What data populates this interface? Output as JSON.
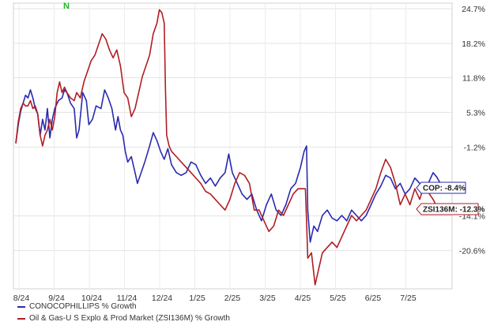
{
  "brand_mark": "N",
  "chart_data": {
    "type": "line",
    "x_ticks": [
      "8/24",
      "9/24",
      "10/24",
      "11/24",
      "12/24",
      "1/25",
      "2/25",
      "3/25",
      "4/25",
      "5/25",
      "6/25",
      "7/25"
    ],
    "y_ticks": [
      "24.7%",
      "18.2%",
      "11.8%",
      "5.3%",
      "-1.2%",
      "-14.1%",
      "-20.6%"
    ],
    "ylim": [
      -27,
      25
    ],
    "grid": true,
    "legend_position": "bottom-left",
    "series": [
      {
        "name": "CONOCOPHILLIPS % Growth",
        "color": "#2a2ab0",
        "end_label": "COP: -8.4%",
        "points": [
          [
            0,
            -0.5
          ],
          [
            0.2,
            3
          ],
          [
            0.4,
            5.5
          ],
          [
            0.6,
            7
          ],
          [
            0.8,
            8.5
          ],
          [
            1.0,
            8
          ],
          [
            1.2,
            9.5
          ],
          [
            1.4,
            8
          ],
          [
            1.6,
            6
          ],
          [
            1.8,
            5
          ],
          [
            2.0,
            1
          ],
          [
            2.2,
            4
          ],
          [
            2.4,
            2
          ],
          [
            2.6,
            6
          ],
          [
            2.8,
            0.5
          ],
          [
            3.0,
            4
          ],
          [
            3.2,
            6
          ],
          [
            3.5,
            7.5
          ],
          [
            3.8,
            8
          ],
          [
            4.0,
            9.5
          ],
          [
            4.2,
            9
          ],
          [
            4.5,
            7
          ],
          [
            4.8,
            6
          ],
          [
            5.0,
            0.5
          ],
          [
            5.2,
            2
          ],
          [
            5.5,
            9
          ],
          [
            5.8,
            7.5
          ],
          [
            6.0,
            3
          ],
          [
            6.3,
            4
          ],
          [
            6.6,
            6.5
          ],
          [
            7.0,
            6
          ],
          [
            7.3,
            9.5
          ],
          [
            7.6,
            8
          ],
          [
            7.9,
            6
          ],
          [
            8.2,
            2
          ],
          [
            8.4,
            4.5
          ],
          [
            8.6,
            2
          ],
          [
            8.8,
            1
          ],
          [
            9.0,
            -2
          ],
          [
            9.2,
            -4
          ],
          [
            9.5,
            -3
          ],
          [
            9.8,
            -6
          ],
          [
            10.0,
            -8
          ],
          [
            10.3,
            -6
          ],
          [
            10.6,
            -4
          ],
          [
            11.0,
            -1
          ],
          [
            11.3,
            1.5
          ],
          [
            11.6,
            0
          ],
          [
            11.9,
            -2
          ],
          [
            12.2,
            -3.5
          ],
          [
            12.5,
            -1.5
          ],
          [
            12.8,
            -4.5
          ],
          [
            13.2,
            -6
          ],
          [
            13.6,
            -6.5
          ],
          [
            14.0,
            -6
          ],
          [
            14.4,
            -4
          ],
          [
            14.8,
            -4.5
          ],
          [
            15.2,
            -6.5
          ],
          [
            15.6,
            -8
          ],
          [
            16.0,
            -7
          ],
          [
            16.4,
            -8.5
          ],
          [
            16.8,
            -7
          ],
          [
            17.2,
            -6
          ],
          [
            17.5,
            -2.5
          ],
          [
            17.8,
            -6
          ],
          [
            18.2,
            -8
          ],
          [
            18.6,
            -10
          ],
          [
            19.0,
            -11
          ],
          [
            19.4,
            -10
          ],
          [
            19.8,
            -13
          ],
          [
            20.2,
            -15
          ],
          [
            20.6,
            -12
          ],
          [
            21.0,
            -10
          ],
          [
            21.4,
            -13
          ],
          [
            21.8,
            -14
          ],
          [
            22.2,
            -12
          ],
          [
            22.6,
            -9
          ],
          [
            23.0,
            -8
          ],
          [
            23.4,
            -5
          ],
          [
            23.7,
            -2
          ],
          [
            23.9,
            -1
          ],
          [
            24.0,
            -13
          ],
          [
            24.2,
            -19
          ],
          [
            24.5,
            -16
          ],
          [
            24.8,
            -17
          ],
          [
            25.2,
            -14
          ],
          [
            25.6,
            -13
          ],
          [
            26.0,
            -14.5
          ],
          [
            26.4,
            -15
          ],
          [
            26.8,
            -14
          ],
          [
            27.2,
            -15
          ],
          [
            27.6,
            -13
          ],
          [
            28.0,
            -14
          ],
          [
            28.4,
            -15
          ],
          [
            28.8,
            -14
          ],
          [
            29.2,
            -12
          ],
          [
            29.6,
            -10
          ],
          [
            30.0,
            -8.5
          ],
          [
            30.4,
            -6.5
          ],
          [
            30.8,
            -7
          ],
          [
            31.2,
            -9
          ],
          [
            31.6,
            -8
          ],
          [
            32.0,
            -10
          ],
          [
            32.4,
            -9
          ],
          [
            32.8,
            -7
          ],
          [
            33.2,
            -8
          ],
          [
            33.6,
            -9.5
          ],
          [
            34.0,
            -7.5
          ],
          [
            34.3,
            -6
          ],
          [
            34.6,
            -6.8
          ],
          [
            35.0,
            -8.4
          ]
        ]
      },
      {
        "name": "Oil & Gas-U S Explo & Prod Market (ZSI136M) % Growth",
        "color": "#b01e24",
        "end_label": "ZSI136M: -12.3%",
        "points": [
          [
            0,
            -0.5
          ],
          [
            0.2,
            3.5
          ],
          [
            0.4,
            6
          ],
          [
            0.6,
            7
          ],
          [
            0.8,
            6.5
          ],
          [
            1.0,
            6.5
          ],
          [
            1.2,
            7.5
          ],
          [
            1.4,
            6
          ],
          [
            1.6,
            6.5
          ],
          [
            1.8,
            5
          ],
          [
            2.0,
            1
          ],
          [
            2.2,
            -1
          ],
          [
            2.4,
            1
          ],
          [
            2.6,
            2
          ],
          [
            2.8,
            4
          ],
          [
            3.0,
            2
          ],
          [
            3.2,
            4.5
          ],
          [
            3.4,
            9
          ],
          [
            3.6,
            11
          ],
          [
            3.8,
            9
          ],
          [
            4.0,
            10
          ],
          [
            4.2,
            9
          ],
          [
            4.5,
            8
          ],
          [
            4.8,
            7.5
          ],
          [
            5.0,
            9
          ],
          [
            5.3,
            8
          ],
          [
            5.6,
            11
          ],
          [
            5.9,
            13
          ],
          [
            6.2,
            15
          ],
          [
            6.5,
            16
          ],
          [
            6.8,
            18
          ],
          [
            7.1,
            20
          ],
          [
            7.4,
            19
          ],
          [
            7.7,
            17
          ],
          [
            8.0,
            15.5
          ],
          [
            8.3,
            17
          ],
          [
            8.6,
            14
          ],
          [
            8.9,
            9
          ],
          [
            9.2,
            8
          ],
          [
            9.5,
            4.5
          ],
          [
            9.8,
            6
          ],
          [
            10.1,
            9
          ],
          [
            10.4,
            12
          ],
          [
            10.7,
            14
          ],
          [
            11.0,
            16
          ],
          [
            11.3,
            20
          ],
          [
            11.6,
            22
          ],
          [
            11.8,
            24.5
          ],
          [
            12.0,
            24
          ],
          [
            12.2,
            22
          ],
          [
            12.3,
            10
          ],
          [
            12.4,
            1
          ],
          [
            12.6,
            -1
          ],
          [
            12.8,
            -2
          ],
          [
            13.2,
            -3
          ],
          [
            13.6,
            -4
          ],
          [
            14.0,
            -5
          ],
          [
            14.4,
            -6
          ],
          [
            14.8,
            -7
          ],
          [
            15.2,
            -8
          ],
          [
            15.6,
            -9.5
          ],
          [
            16.0,
            -10
          ],
          [
            16.4,
            -11
          ],
          [
            16.8,
            -12
          ],
          [
            17.2,
            -13
          ],
          [
            17.6,
            -11
          ],
          [
            18.0,
            -8
          ],
          [
            18.4,
            -6
          ],
          [
            18.8,
            -6.5
          ],
          [
            19.2,
            -8
          ],
          [
            19.6,
            -13
          ],
          [
            20.0,
            -13
          ],
          [
            20.4,
            -15
          ],
          [
            20.8,
            -17
          ],
          [
            21.2,
            -16
          ],
          [
            21.6,
            -13
          ],
          [
            22.0,
            -14
          ],
          [
            22.4,
            -12
          ],
          [
            22.8,
            -10
          ],
          [
            23.2,
            -9
          ],
          [
            23.6,
            -9
          ],
          [
            23.8,
            -9
          ],
          [
            23.9,
            -15
          ],
          [
            24.0,
            -22
          ],
          [
            24.3,
            -21
          ],
          [
            24.6,
            -27
          ],
          [
            24.9,
            -24
          ],
          [
            25.2,
            -21
          ],
          [
            25.6,
            -20
          ],
          [
            26.0,
            -19
          ],
          [
            26.4,
            -20
          ],
          [
            26.8,
            -18
          ],
          [
            27.2,
            -16
          ],
          [
            27.6,
            -14
          ],
          [
            28.0,
            -15
          ],
          [
            28.4,
            -14
          ],
          [
            28.8,
            -13
          ],
          [
            29.2,
            -11
          ],
          [
            29.6,
            -9
          ],
          [
            30.0,
            -6
          ],
          [
            30.4,
            -3.5
          ],
          [
            30.8,
            -5
          ],
          [
            31.2,
            -8
          ],
          [
            31.6,
            -12
          ],
          [
            32.0,
            -10
          ],
          [
            32.4,
            -12
          ],
          [
            32.8,
            -9
          ],
          [
            33.2,
            -11
          ],
          [
            33.6,
            -8
          ],
          [
            34.0,
            -10
          ],
          [
            34.3,
            -11
          ],
          [
            34.6,
            -12.3
          ],
          [
            35.0,
            -12.3
          ]
        ]
      }
    ]
  }
}
